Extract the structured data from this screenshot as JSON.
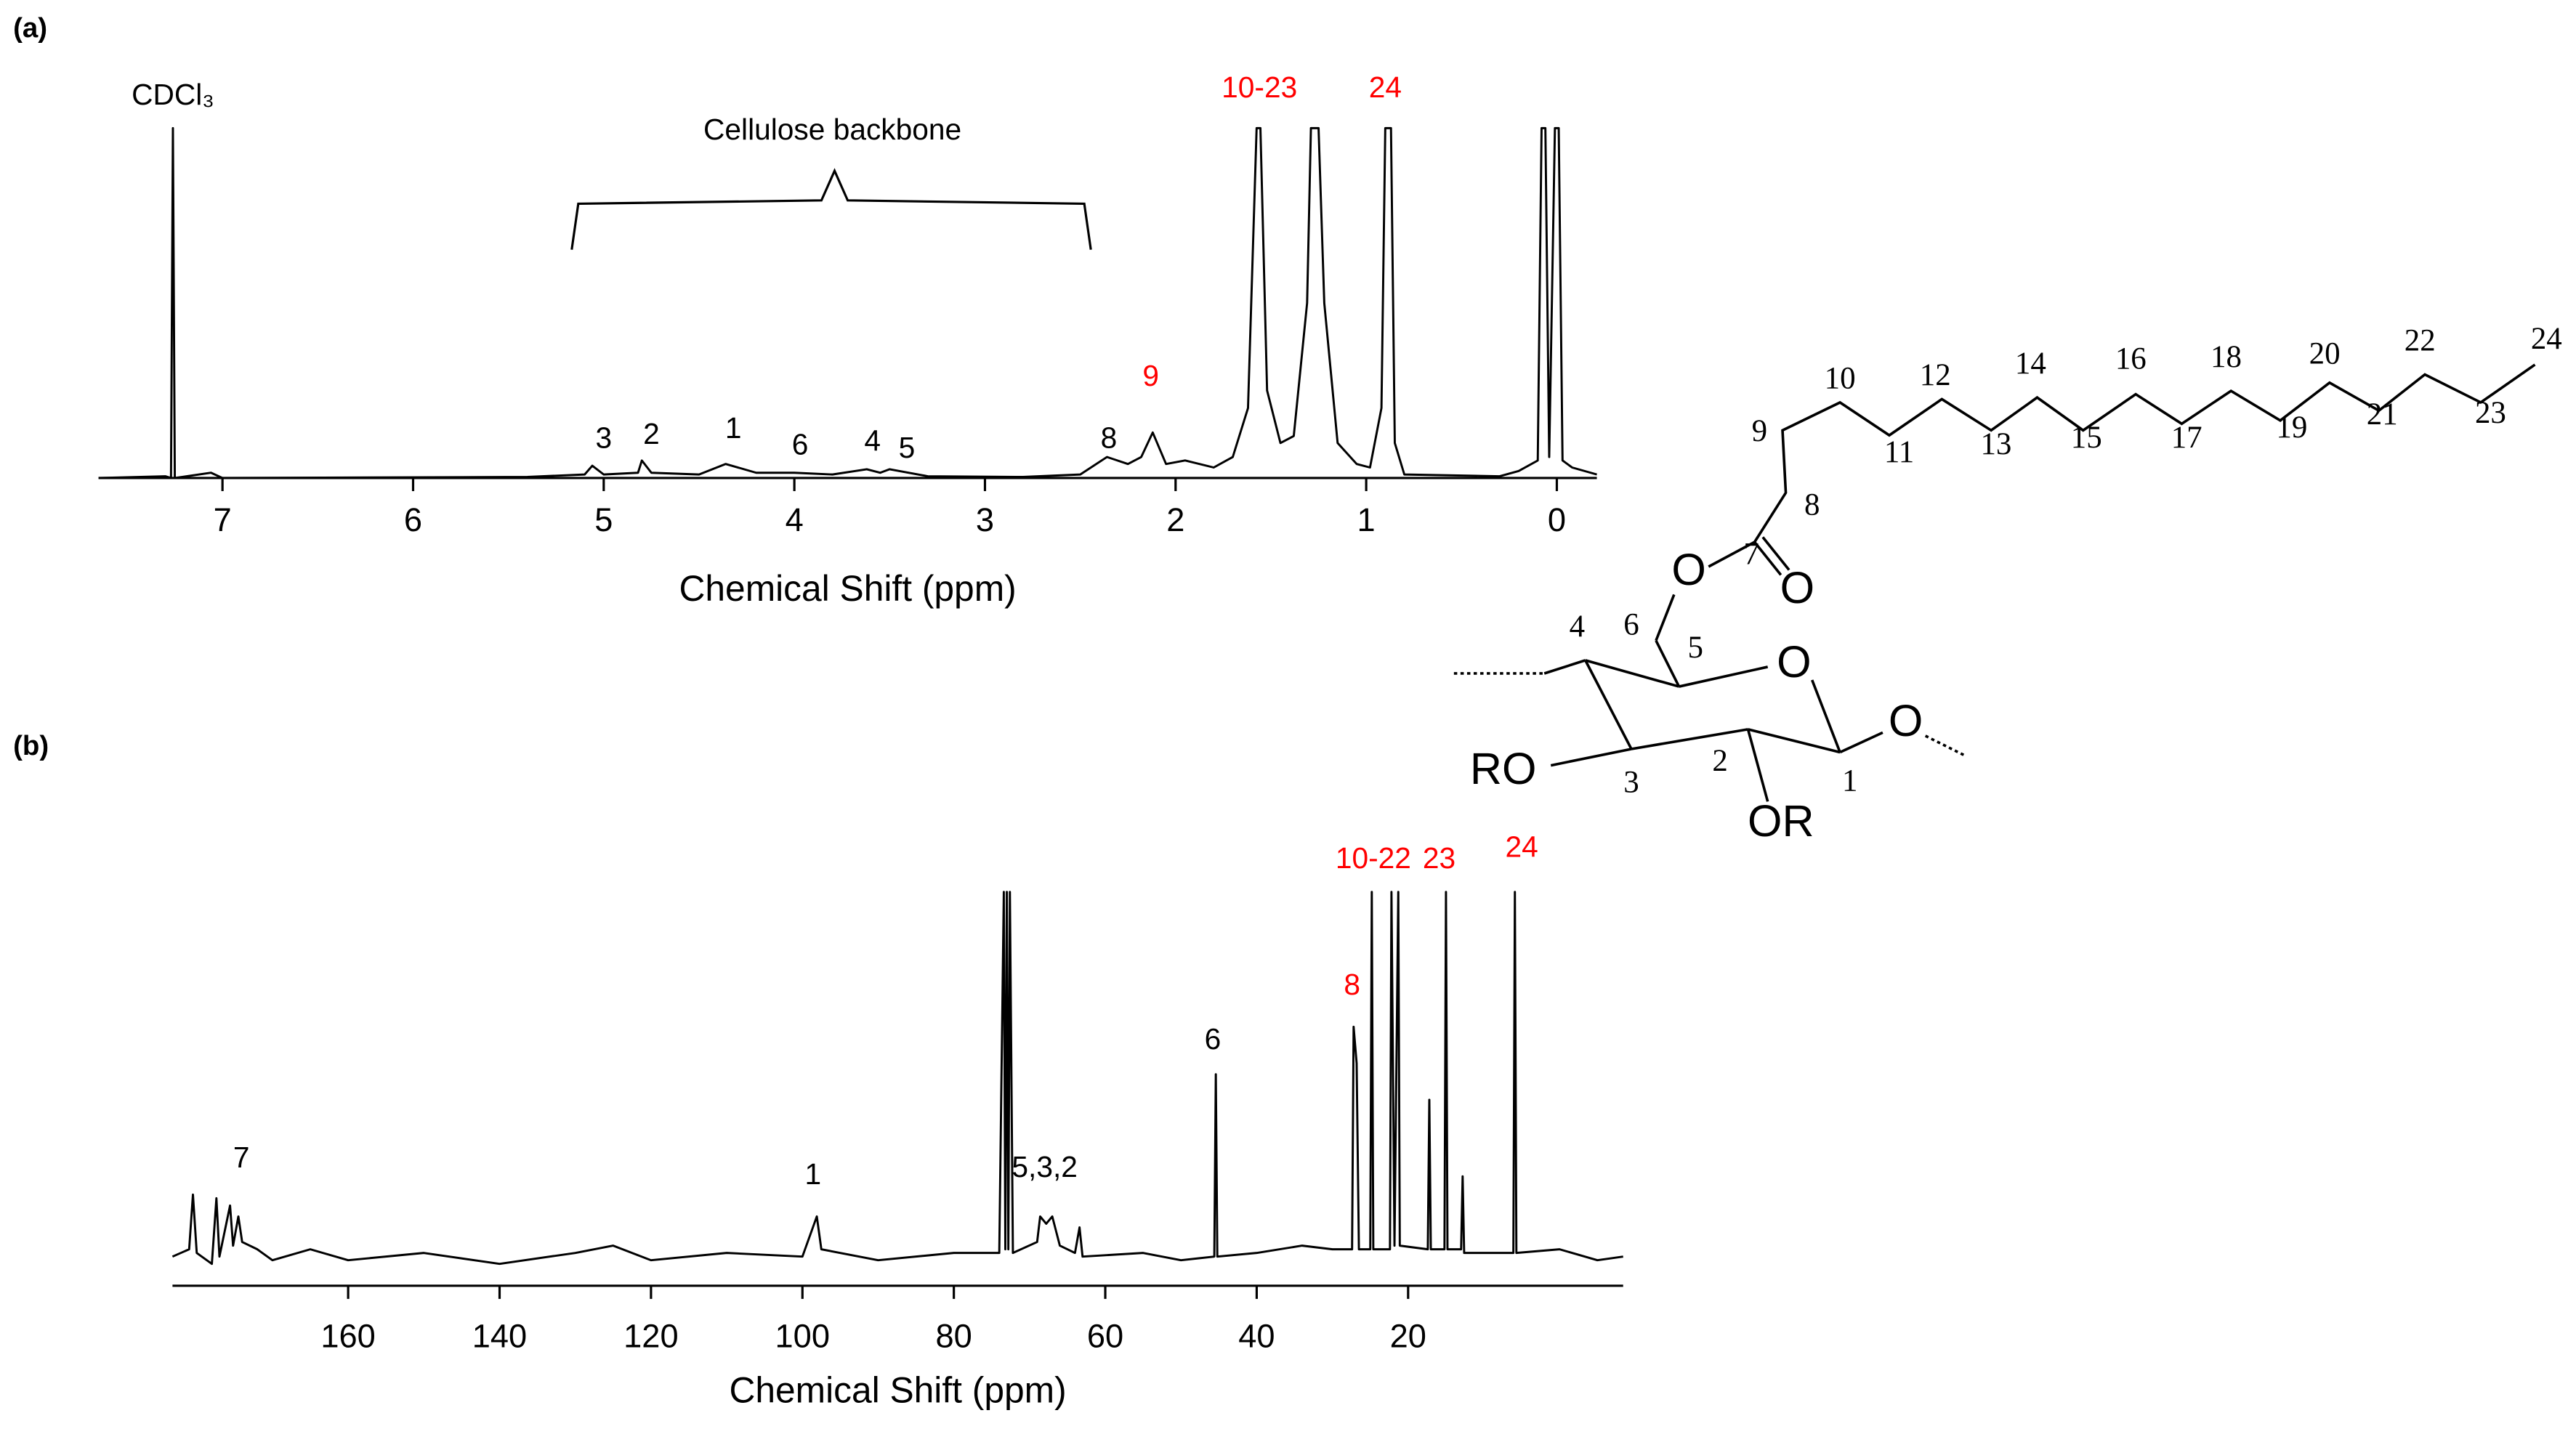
{
  "chart_data": [
    {
      "type": "line",
      "panel_label": "(a)",
      "x_label": "Chemical Shift (ppm)",
      "color": "#000000",
      "xlim": [
        7.65,
        -0.21
      ],
      "xticks": [
        7,
        6,
        5,
        4,
        3,
        2,
        1,
        0
      ],
      "ylim": [
        0,
        100
      ],
      "x": [
        7.65,
        7.3,
        7.27,
        7.26,
        7.25,
        7.06,
        7.0,
        5.4,
        5.1,
        5.06,
        5.0,
        4.82,
        4.8,
        4.75,
        4.5,
        4.36,
        4.2,
        4.0,
        3.8,
        3.62,
        3.55,
        3.5,
        3.3,
        2.8,
        2.5,
        2.36,
        2.25,
        2.18,
        2.12,
        2.05,
        1.95,
        1.8,
        1.7,
        1.62,
        1.575,
        1.555,
        1.52,
        1.45,
        1.38,
        1.31,
        1.29,
        1.25,
        1.22,
        1.15,
        1.05,
        0.98,
        0.92,
        0.9,
        0.87,
        0.85,
        0.8,
        0.3,
        0.2,
        0.1,
        0.08,
        0.06,
        0.04,
        0.01,
        -0.01,
        -0.03,
        -0.08,
        -0.21
      ],
      "values": [
        0,
        0.5,
        0,
        100,
        0,
        1.5,
        0,
        0.3,
        1,
        3.5,
        1,
        1.5,
        5,
        1.5,
        1,
        4,
        1.5,
        1.5,
        1,
        2.5,
        1.5,
        2.5,
        0.5,
        0.3,
        1,
        6,
        4,
        6,
        13,
        4,
        5,
        3,
        6,
        20,
        100,
        100,
        25,
        10,
        12,
        50,
        100,
        100,
        50,
        10,
        4,
        3,
        20,
        100,
        100,
        10,
        1,
        0.5,
        2,
        5,
        100,
        100,
        6,
        100,
        100,
        5,
        3,
        1
      ],
      "annotations": [
        {
          "text": "CDCl₃",
          "x": 7.26,
          "y": 109
        },
        {
          "text": "Cellulose backbone",
          "x": 3.8,
          "y": 99
        },
        {
          "text": "10-23",
          "x": 1.56,
          "y": 111,
          "color": "#ff0000"
        },
        {
          "text": "24",
          "x": 0.9,
          "y": 111,
          "color": "#ff0000"
        },
        {
          "text": "8",
          "x": 2.35,
          "y": 10.8
        },
        {
          "text": "9",
          "x": 2.13,
          "y": 28.6,
          "color": "#ff0000"
        },
        {
          "text": "3",
          "x": 5.0,
          "y": 10.8
        },
        {
          "text": "2",
          "x": 4.75,
          "y": 12
        },
        {
          "text": "1",
          "x": 4.32,
          "y": 13.6
        },
        {
          "text": "6",
          "x": 3.97,
          "y": 9
        },
        {
          "text": "4",
          "x": 3.59,
          "y": 10
        },
        {
          "text": "5",
          "x": 3.41,
          "y": 8
        }
      ]
    },
    {
      "type": "line",
      "panel_label": "(b)",
      "x_label": "Chemical Shift (ppm)",
      "color": "#000000",
      "xlim": [
        183.2,
        -8.4
      ],
      "xticks": [
        160,
        140,
        120,
        100,
        80,
        60,
        40,
        20
      ],
      "ylim": [
        -8,
        100
      ],
      "x": [
        183.2,
        181,
        180.5,
        180,
        178,
        177.4,
        177,
        175.6,
        175.2,
        174.5,
        174,
        172,
        170,
        165,
        160,
        150,
        140,
        130,
        125,
        120,
        110,
        100,
        98.1,
        97.5,
        90,
        80,
        74,
        73.4,
        73.2,
        73,
        72.8,
        72.6,
        72.2,
        69,
        68.6,
        67.8,
        67,
        66,
        64,
        63.4,
        63,
        55,
        50,
        45.6,
        45.4,
        45.2,
        40,
        34,
        30,
        27.4,
        27.2,
        26.8,
        26.5,
        25,
        24.8,
        24.6,
        22.4,
        22.2,
        21.8,
        21.3,
        21.1,
        17.4,
        17.2,
        17,
        15.2,
        15,
        14.8,
        13,
        12.8,
        12.6,
        6.1,
        5.9,
        5.7,
        0,
        -5,
        -8.4
      ],
      "values": [
        0,
        2,
        17,
        1,
        -2,
        16,
        0,
        14,
        3,
        11,
        4,
        2,
        -1,
        2,
        -1,
        1,
        -2,
        1,
        3,
        -1,
        1,
        0,
        11,
        2,
        -1,
        1,
        1,
        100,
        2,
        100,
        2,
        100,
        1,
        4,
        11,
        9,
        11,
        3,
        1,
        8,
        0,
        1,
        -1,
        0,
        50,
        0,
        1,
        3,
        2,
        2,
        63,
        53,
        2,
        2,
        100,
        2,
        2,
        100,
        3,
        100,
        3,
        2,
        43,
        2,
        2,
        100,
        2,
        2,
        22,
        1,
        1,
        100,
        1,
        2,
        -1,
        0
      ],
      "annotations": [
        {
          "text": "7",
          "x": 174.1,
          "y": 26.6
        },
        {
          "text": "1",
          "x": 98.6,
          "y": 22
        },
        {
          "text": "5,3,2",
          "x": 68.0,
          "y": 24
        },
        {
          "text": "6",
          "x": 45.8,
          "y": 59
        },
        {
          "text": "8",
          "x": 27.4,
          "y": 74,
          "color": "#ff0000"
        },
        {
          "text": "10-22",
          "x": 24.6,
          "y": 108.6,
          "color": "#ff0000"
        },
        {
          "text": "23",
          "x": 15.9,
          "y": 108.6,
          "color": "#ff0000"
        },
        {
          "text": "24",
          "x": 5.0,
          "y": 111.7,
          "color": "#ff0000"
        }
      ]
    }
  ],
  "structure": {
    "atom_labels": [
      "O",
      "O",
      "O",
      "O",
      "RO",
      "OR"
    ],
    "position_numbers": [
      "1",
      "2",
      "3",
      "4",
      "5",
      "6",
      "7",
      "8",
      "9",
      "10",
      "11",
      "12",
      "13",
      "14",
      "15",
      "16",
      "17",
      "18",
      "19",
      "20",
      "21",
      "22",
      "23",
      "24"
    ]
  }
}
